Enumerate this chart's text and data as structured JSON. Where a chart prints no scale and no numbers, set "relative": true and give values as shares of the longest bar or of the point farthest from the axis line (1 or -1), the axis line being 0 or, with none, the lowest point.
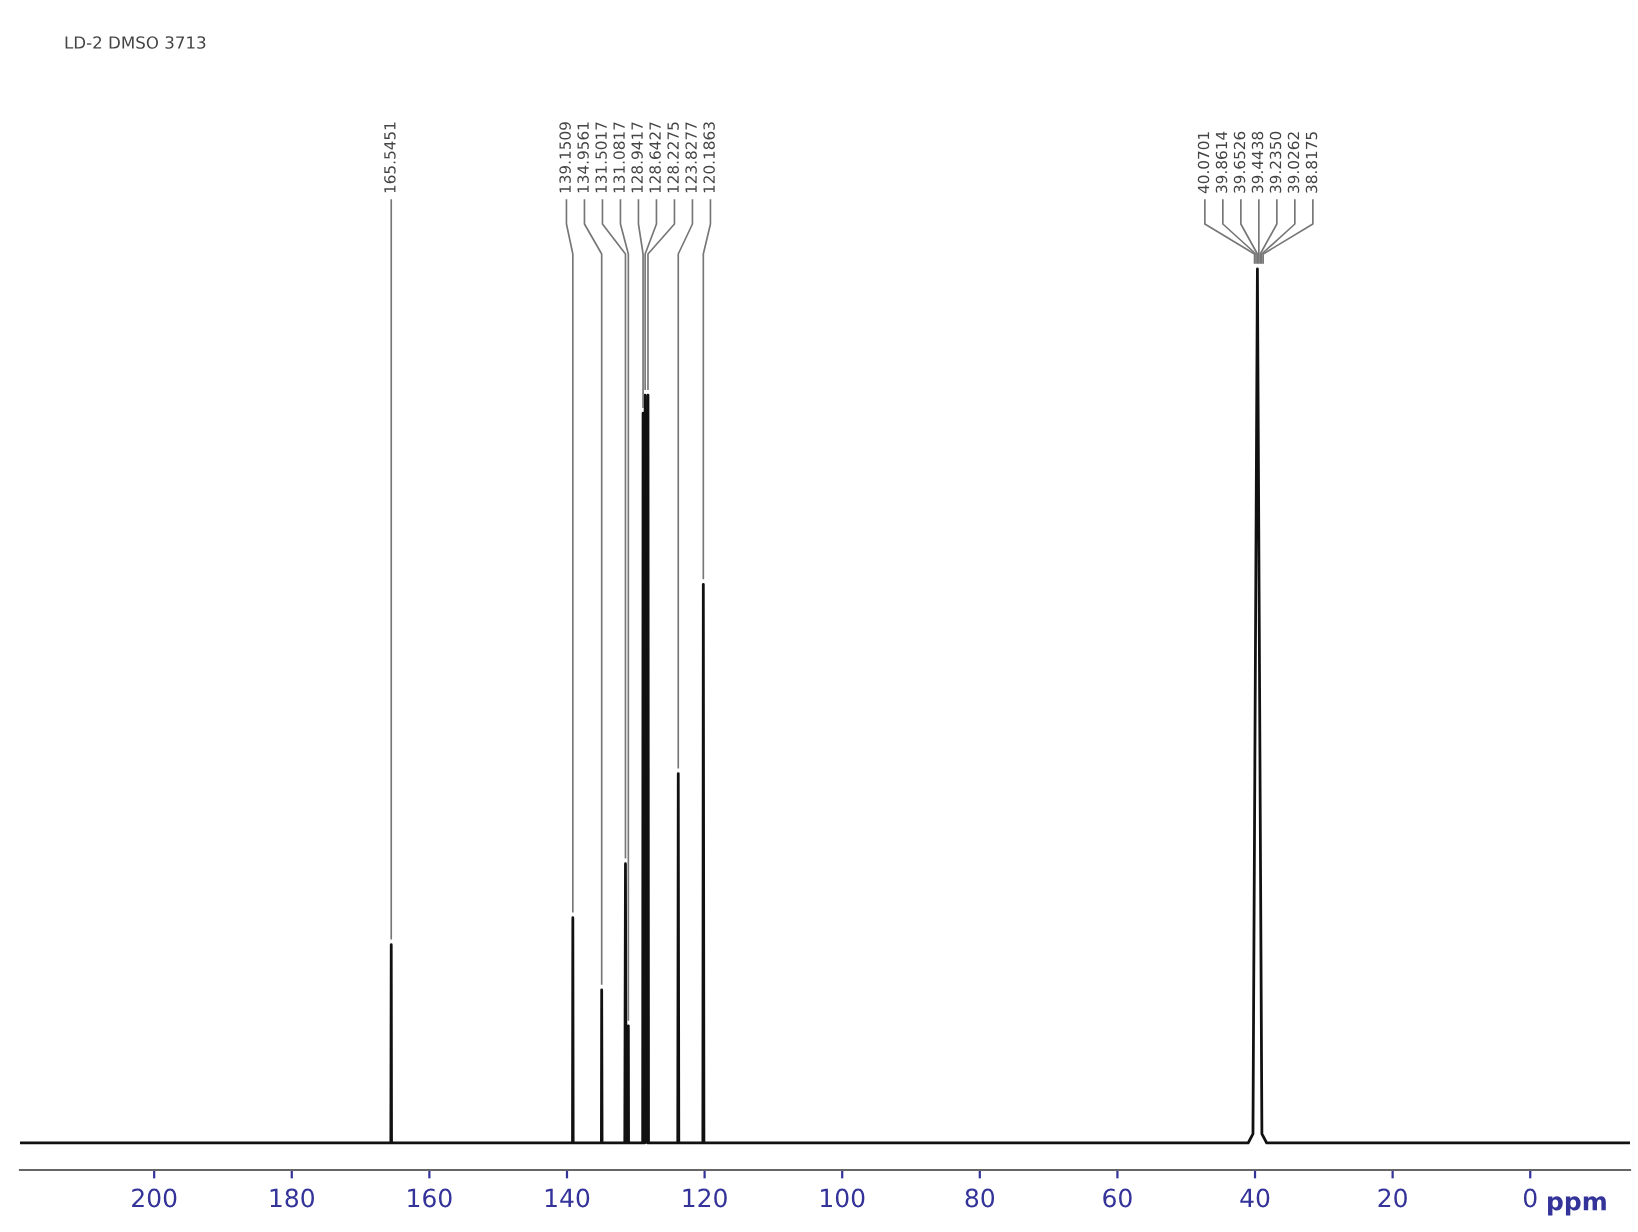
{
  "chart_data": {
    "type": "line",
    "title": "LD-2 DMSO 3713",
    "relative": true,
    "xlim": [
      219.5,
      -14.5
    ],
    "xticks": [
      200,
      180,
      160,
      140,
      120,
      100,
      80,
      60,
      40,
      20,
      0
    ],
    "xlabel": "ppm",
    "grid": false,
    "marker": "none",
    "line_style": "solid",
    "series": [
      {
        "color": "#111111",
        "x": [
          219.5,
          210,
          200,
          190,
          180,
          170,
          165.6,
          165.545,
          165.5,
          155,
          145,
          139.2,
          139.151,
          139.1,
          135.0,
          134.956,
          134.9,
          131.6,
          131.5,
          131.4,
          131.1,
          131.082,
          131.05,
          129.0,
          128.942,
          128.8,
          128.7,
          128.643,
          128.3,
          128.228,
          128.15,
          123.9,
          123.828,
          123.75,
          120.25,
          120.186,
          120.1,
          110,
          100,
          90,
          80,
          70,
          60,
          50,
          41,
          40.3,
          39.653,
          39.0,
          38.3,
          30,
          20,
          10,
          0,
          -10,
          -14.5
        ],
        "values": [
          0.03,
          0.03,
          0.03,
          0.03,
          0.03,
          0.03,
          0.03,
          0.25,
          0.03,
          0.03,
          0.03,
          0.03,
          0.28,
          0.03,
          0.03,
          0.2,
          0.03,
          0.03,
          0.34,
          0.03,
          0.03,
          0.16,
          0.03,
          0.03,
          0.84,
          0.03,
          0.03,
          0.86,
          0.03,
          0.86,
          0.03,
          0.03,
          0.44,
          0.03,
          0.03,
          0.65,
          0.03,
          0.03,
          0.03,
          0.03,
          0.03,
          0.03,
          0.03,
          0.03,
          0.03,
          0.04,
          1.0,
          0.04,
          0.03,
          0.03,
          0.03,
          0.03,
          0.03,
          0.03,
          0.03
        ]
      }
    ],
    "annotations": [
      {
        "text": "165.5451",
        "x": 165.545,
        "y": 0.25
      },
      {
        "text": "139.1509",
        "x": 139.151,
        "y": 0.28
      },
      {
        "text": "134.9561",
        "x": 134.956,
        "y": 0.2
      },
      {
        "text": "131.5017",
        "x": 131.5,
        "y": 0.34
      },
      {
        "text": "131.0817",
        "x": 131.082,
        "y": 0.16
      },
      {
        "text": "128.9417",
        "x": 128.942,
        "y": 0.84
      },
      {
        "text": "128.6427",
        "x": 128.643,
        "y": 0.86
      },
      {
        "text": "128.2275",
        "x": 128.228,
        "y": 0.86
      },
      {
        "text": "123.8277",
        "x": 123.828,
        "y": 0.44
      },
      {
        "text": "120.1863",
        "x": 120.186,
        "y": 0.65
      },
      {
        "text": "40.0701",
        "x": 40.07,
        "y": 1.0
      },
      {
        "text": "39.8614",
        "x": 39.861,
        "y": 1.0
      },
      {
        "text": "39.6526",
        "x": 39.653,
        "y": 1.0
      },
      {
        "text": "39.4438",
        "x": 39.444,
        "y": 1.0
      },
      {
        "text": "39.2350",
        "x": 39.235,
        "y": 1.0
      },
      {
        "text": "39.0262",
        "x": 39.026,
        "y": 1.0
      },
      {
        "text": "38.8175",
        "x": 38.818,
        "y": 1.0
      }
    ]
  }
}
